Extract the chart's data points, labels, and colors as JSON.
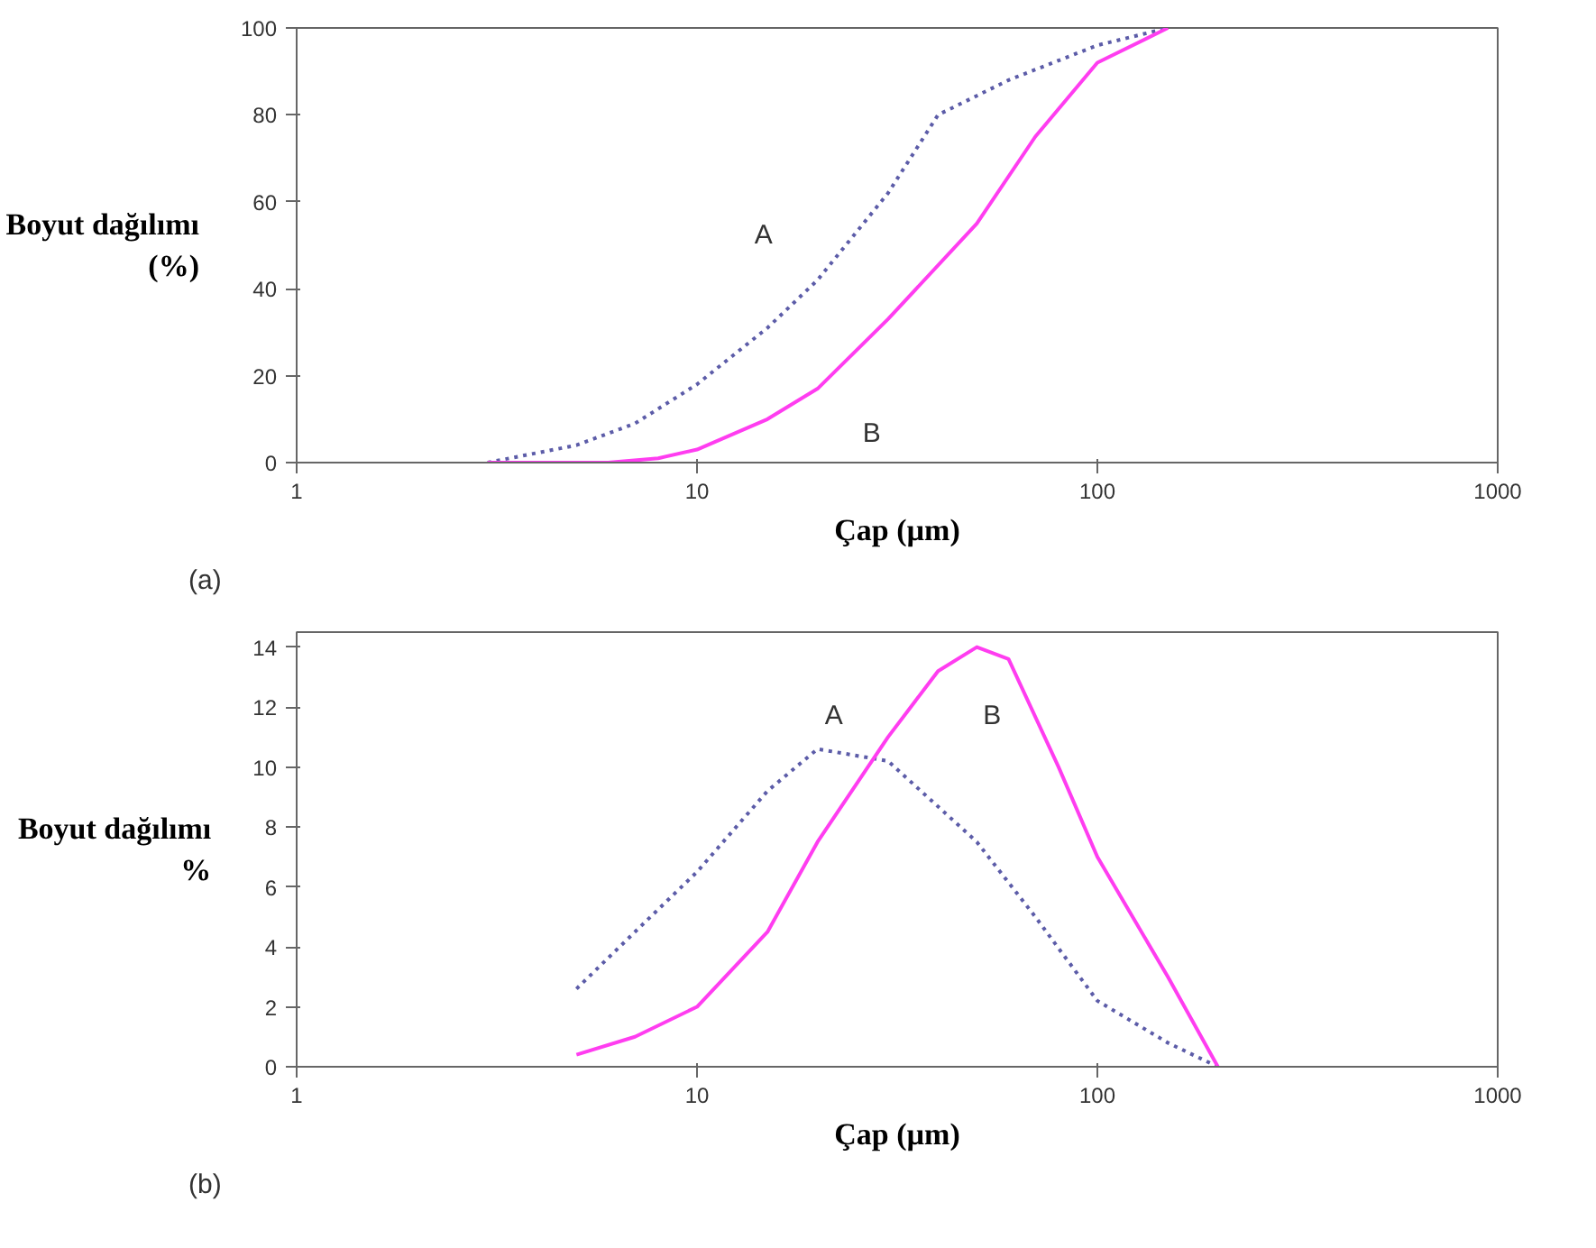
{
  "chart_data": [
    {
      "type": "line",
      "xlabel": "Çap (µm)",
      "ylabel": "Boyut dağılımı\n(%)",
      "log": "x",
      "xlim": [
        1,
        1000
      ],
      "xticks": [
        1,
        10,
        100,
        1000
      ],
      "ylim": [
        0,
        100
      ],
      "yticks": [
        0,
        20,
        40,
        60,
        80,
        100
      ],
      "grid": false,
      "legend": false,
      "annotations": [
        "(a)"
      ],
      "series": [
        {
          "name": "A",
          "color": "#5c5ca8",
          "line_style": "dotted",
          "x": [
            3,
            5,
            7,
            10,
            15,
            20,
            30,
            40,
            60,
            100,
            150
          ],
          "values": [
            0,
            4,
            9,
            18,
            31,
            42,
            62,
            80,
            88,
            96,
            100
          ]
        },
        {
          "name": "B",
          "color": "#ff3df0",
          "line_style": "solid",
          "x": [
            3,
            6,
            8,
            10,
            15,
            20,
            30,
            50,
            70,
            100,
            150
          ],
          "values": [
            0,
            0,
            1,
            3,
            10,
            17,
            33,
            55,
            75,
            92,
            100
          ]
        }
      ]
    },
    {
      "type": "line",
      "xlabel": "Çap (µm)",
      "ylabel": "Boyut dağılımı\n%",
      "log": "x",
      "xlim": [
        1,
        1000
      ],
      "xticks": [
        1,
        10,
        100,
        1000
      ],
      "ylim": [
        0,
        14.5
      ],
      "yticks": [
        0,
        2,
        4,
        6,
        8,
        10,
        12,
        14
      ],
      "grid": false,
      "legend": false,
      "annotations": [
        "(b)"
      ],
      "series": [
        {
          "name": "A",
          "color": "#5c5ca8",
          "line_style": "dotted",
          "x": [
            5,
            7,
            10,
            15,
            20,
            30,
            50,
            70,
            100,
            150,
            200
          ],
          "values": [
            2.6,
            4.5,
            6.5,
            9.2,
            10.6,
            10.2,
            7.5,
            5,
            2.2,
            0.8,
            0
          ]
        },
        {
          "name": "B",
          "color": "#ff3df0",
          "line_style": "solid",
          "x": [
            5,
            7,
            10,
            15,
            20,
            30,
            40,
            50,
            60,
            80,
            100,
            150,
            200
          ],
          "values": [
            0.4,
            1,
            2,
            4.5,
            7.5,
            11,
            13.2,
            14,
            13.6,
            10,
            7,
            3,
            0
          ]
        }
      ]
    }
  ]
}
